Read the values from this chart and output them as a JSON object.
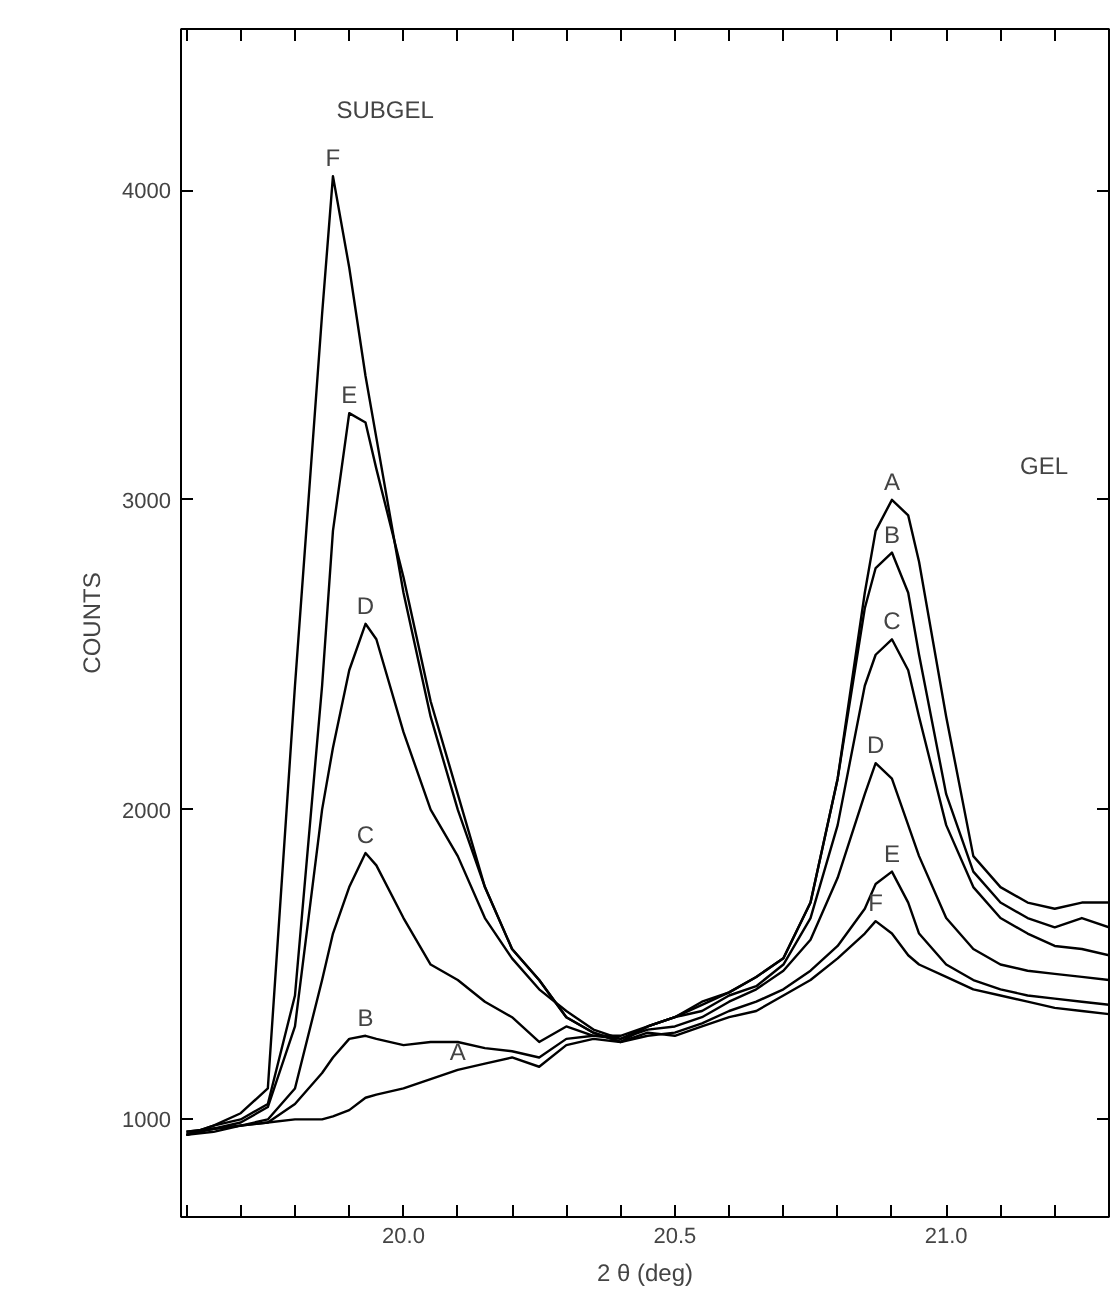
{
  "chart_data": {
    "type": "line",
    "xlabel": "2 θ (deg)",
    "ylabel": "COUNTS",
    "x": [
      19.6,
      19.65,
      19.7,
      19.75,
      19.8,
      19.85,
      19.87,
      19.9,
      19.93,
      19.95,
      20.0,
      20.05,
      20.1,
      20.15,
      20.2,
      20.25,
      20.3,
      20.35,
      20.4,
      20.45,
      20.5,
      20.55,
      20.6,
      20.65,
      20.7,
      20.75,
      20.8,
      20.85,
      20.87,
      20.9,
      20.93,
      20.95,
      21.0,
      21.05,
      21.1,
      21.15,
      21.2,
      21.25,
      21.3
    ],
    "series": [
      {
        "name": "A",
        "color": "#000000",
        "values": [
          960,
          970,
          980,
          990,
          1000,
          1000,
          1010,
          1030,
          1070,
          1080,
          1100,
          1130,
          1160,
          1180,
          1200,
          1170,
          1240,
          1260,
          1250,
          1300,
          1330,
          1380,
          1410,
          1460,
          1520,
          1700,
          2100,
          2700,
          2900,
          3000,
          2950,
          2800,
          2300,
          1850,
          1750,
          1700,
          1680,
          1700,
          1700
        ]
      },
      {
        "name": "B",
        "color": "#000000",
        "values": [
          960,
          970,
          980,
          990,
          1050,
          1150,
          1200,
          1260,
          1270,
          1260,
          1240,
          1250,
          1250,
          1230,
          1220,
          1200,
          1260,
          1270,
          1270,
          1300,
          1330,
          1370,
          1410,
          1460,
          1520,
          1700,
          2100,
          2650,
          2780,
          2830,
          2700,
          2500,
          2050,
          1800,
          1700,
          1650,
          1620,
          1650,
          1620
        ]
      },
      {
        "name": "C",
        "color": "#000000",
        "values": [
          950,
          960,
          980,
          1000,
          1100,
          1450,
          1600,
          1750,
          1860,
          1820,
          1650,
          1500,
          1450,
          1380,
          1330,
          1250,
          1300,
          1270,
          1260,
          1300,
          1330,
          1350,
          1400,
          1430,
          1500,
          1650,
          1950,
          2400,
          2500,
          2550,
          2450,
          2300,
          1950,
          1750,
          1650,
          1600,
          1560,
          1550,
          1530
        ]
      },
      {
        "name": "D",
        "color": "#000000",
        "values": [
          950,
          970,
          990,
          1040,
          1300,
          2000,
          2200,
          2450,
          2600,
          2550,
          2250,
          2000,
          1850,
          1650,
          1520,
          1420,
          1350,
          1290,
          1260,
          1290,
          1300,
          1330,
          1380,
          1420,
          1480,
          1580,
          1780,
          2050,
          2150,
          2100,
          1950,
          1850,
          1650,
          1550,
          1500,
          1480,
          1470,
          1460,
          1450
        ]
      },
      {
        "name": "E",
        "color": "#000000",
        "values": [
          950,
          980,
          1000,
          1050,
          1400,
          2400,
          2900,
          3280,
          3250,
          3100,
          2750,
          2350,
          2050,
          1750,
          1550,
          1450,
          1330,
          1280,
          1250,
          1270,
          1280,
          1310,
          1350,
          1380,
          1420,
          1480,
          1560,
          1680,
          1760,
          1800,
          1700,
          1600,
          1500,
          1450,
          1420,
          1400,
          1390,
          1380,
          1370
        ]
      },
      {
        "name": "F",
        "color": "#000000",
        "values": [
          950,
          980,
          1020,
          1100,
          2400,
          3600,
          4045,
          3750,
          3400,
          3200,
          2700,
          2300,
          2000,
          1750,
          1550,
          1450,
          1330,
          1280,
          1250,
          1280,
          1270,
          1300,
          1330,
          1350,
          1400,
          1450,
          1520,
          1600,
          1640,
          1600,
          1530,
          1500,
          1460,
          1420,
          1400,
          1380,
          1360,
          1350,
          1340
        ]
      }
    ],
    "xlim": [
      19.59,
      21.3
    ],
    "ylim": [
      685,
      4520
    ],
    "xticks": [
      {
        "value": 19.6,
        "label": null
      },
      {
        "value": 19.7,
        "label": null
      },
      {
        "value": 19.8,
        "label": null
      },
      {
        "value": 19.9,
        "label": null
      },
      {
        "value": 20.0,
        "label": "20.0"
      },
      {
        "value": 20.1,
        "label": null
      },
      {
        "value": 20.2,
        "label": null
      },
      {
        "value": 20.3,
        "label": null
      },
      {
        "value": 20.4,
        "label": null
      },
      {
        "value": 20.5,
        "label": "20.5"
      },
      {
        "value": 20.6,
        "label": null
      },
      {
        "value": 20.7,
        "label": null
      },
      {
        "value": 20.8,
        "label": null
      },
      {
        "value": 20.9,
        "label": null
      },
      {
        "value": 21.0,
        "label": "21.0"
      },
      {
        "value": 21.1,
        "label": null
      },
      {
        "value": 21.2,
        "label": null
      }
    ],
    "yticks": [
      1000,
      2000,
      3000,
      4000
    ],
    "grid": false,
    "line_style": "solid",
    "annotations": [
      "SUBGEL",
      "GEL"
    ]
  }
}
